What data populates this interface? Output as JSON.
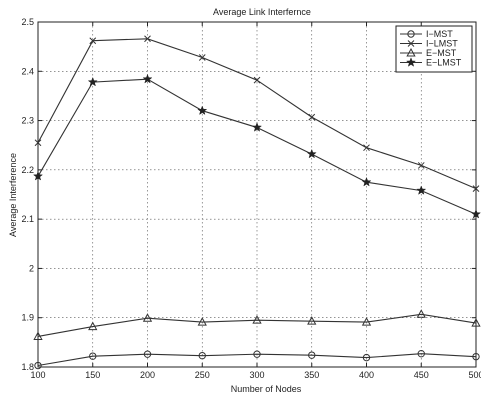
{
  "chart_data": {
    "type": "line",
    "title": "Average Link Interfernce",
    "xlabel": "Number of Nodes",
    "ylabel": "Average Interference",
    "x": [
      100,
      150,
      200,
      250,
      300,
      350,
      400,
      450,
      500
    ],
    "xlim": [
      100,
      500
    ],
    "ylim": [
      1.8,
      2.5
    ],
    "xticks": [
      "100",
      "150",
      "200",
      "250",
      "300",
      "350",
      "400",
      "450",
      "500"
    ],
    "yticks": [
      "1.8",
      "1.9",
      "2",
      "2.1",
      "2.2",
      "2.3",
      "2.4",
      "2.5"
    ],
    "grid": true,
    "legend_position": "top-right",
    "series": [
      {
        "name": "I−MST",
        "marker": "circle",
        "values": [
          1.803,
          1.822,
          1.826,
          1.823,
          1.826,
          1.824,
          1.819,
          1.827,
          1.821
        ]
      },
      {
        "name": "I−LMST",
        "marker": "x",
        "values": [
          2.255,
          2.462,
          2.466,
          2.428,
          2.382,
          2.307,
          2.245,
          2.209,
          2.162
        ]
      },
      {
        "name": "E−MST",
        "marker": "triangle",
        "values": [
          1.862,
          1.882,
          1.899,
          1.891,
          1.895,
          1.893,
          1.891,
          1.907,
          1.889
        ]
      },
      {
        "name": "E−LMST",
        "marker": "star",
        "values": [
          2.187,
          2.378,
          2.384,
          2.32,
          2.286,
          2.232,
          2.175,
          2.158,
          2.11
        ]
      }
    ]
  }
}
